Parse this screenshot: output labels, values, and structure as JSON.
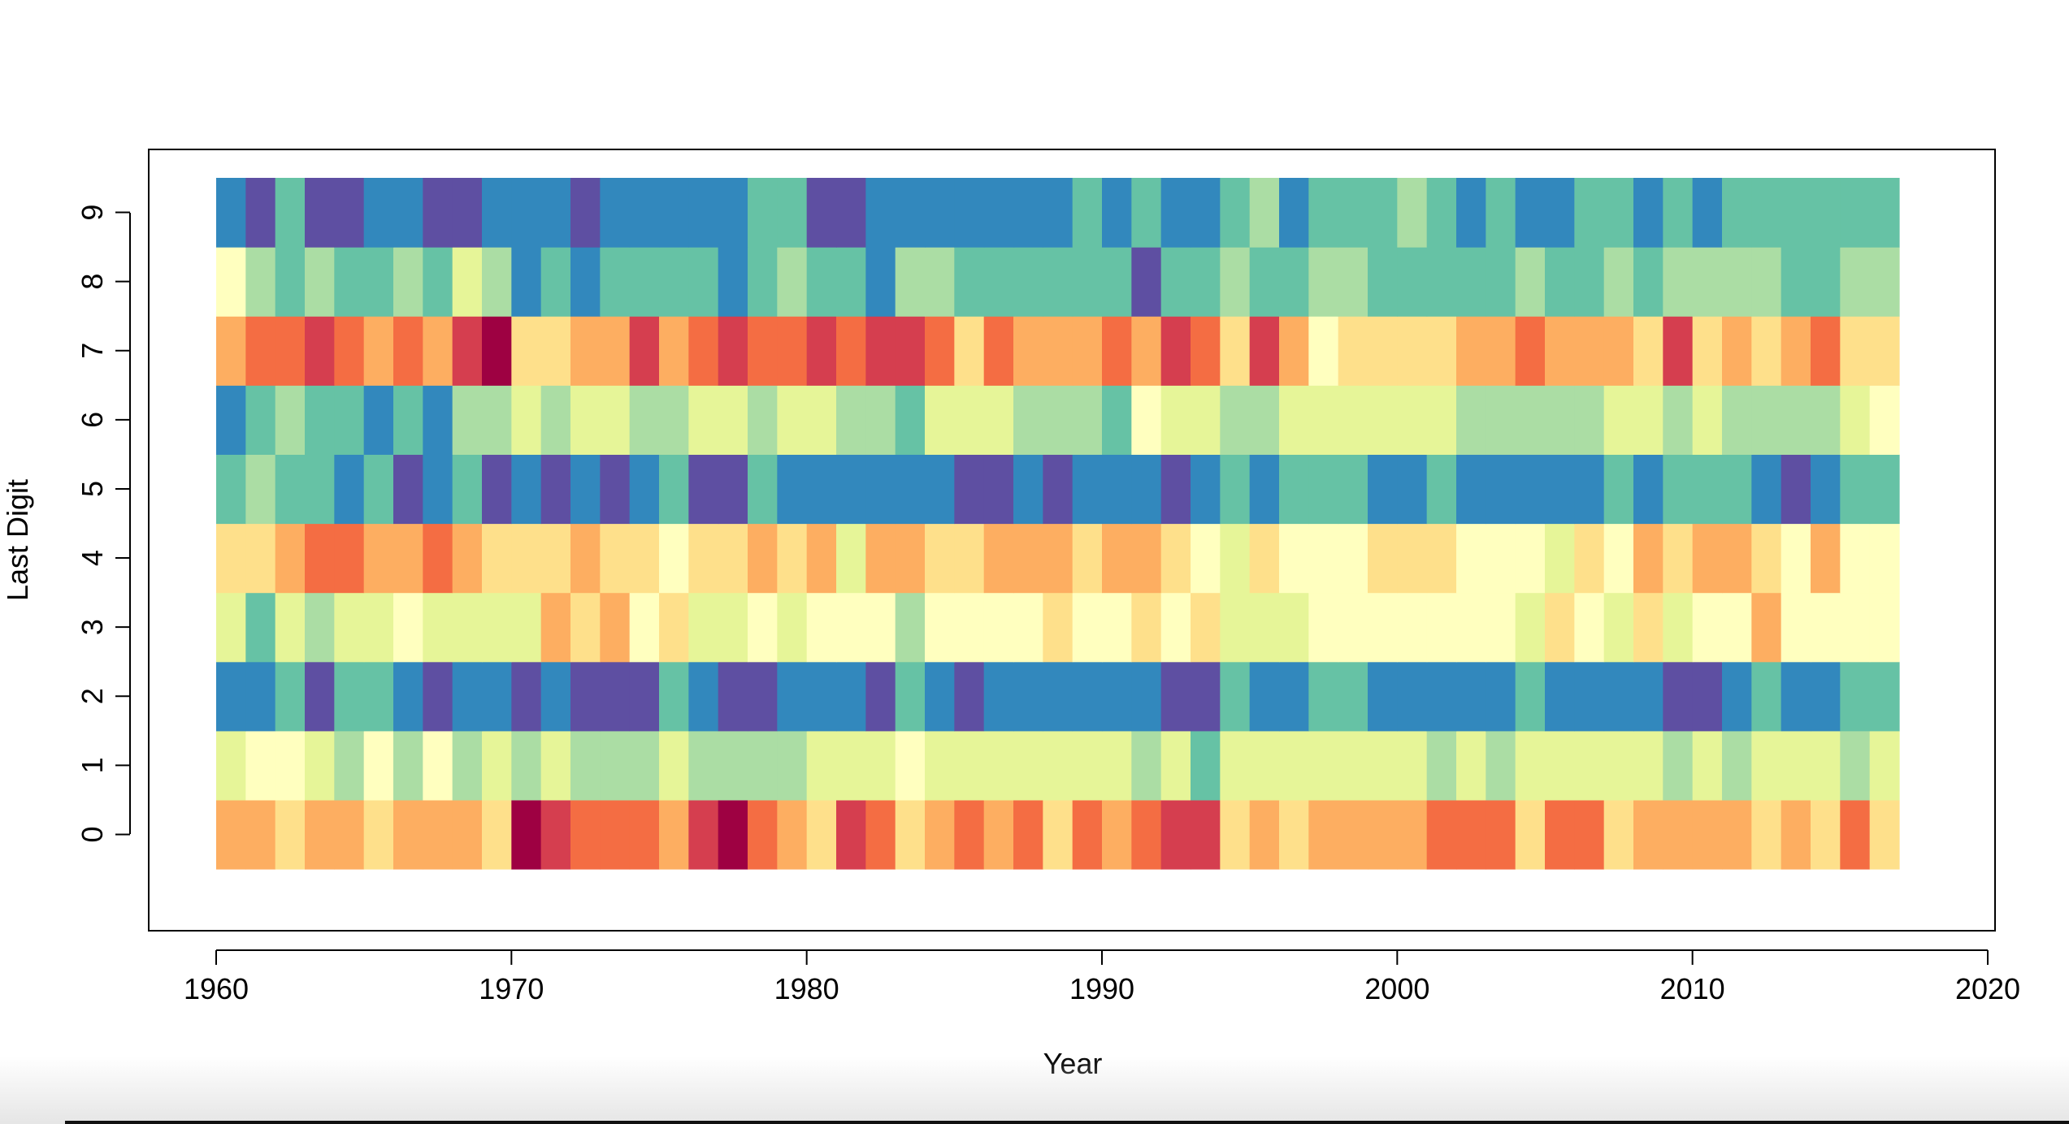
{
  "chart_data": {
    "type": "heatmap",
    "xlabel": "Year",
    "ylabel": "Last Digit",
    "x_ticks": [
      1960,
      1970,
      1980,
      1990,
      2000,
      2010,
      2020
    ],
    "y_ticks": [
      0,
      1,
      2,
      3,
      4,
      5,
      6,
      7,
      8,
      9
    ],
    "xlim": [
      1960,
      2020
    ],
    "years": [
      1960,
      2016
    ],
    "color_scale": "spectral, 1 = dark red (highest), 11 = violet (lowest)",
    "palette": [
      "#9E0142",
      "#D53E4F",
      "#F46D43",
      "#FDAE61",
      "#FEE08B",
      "#FFFFBF",
      "#E6F598",
      "#ABDDA4",
      "#66C2A5",
      "#3288BD",
      "#5E4FA2"
    ],
    "rows": {
      "0": [
        4,
        4,
        5,
        4,
        4,
        5,
        4,
        4,
        4,
        5,
        1,
        2,
        3,
        3,
        3,
        4,
        2,
        1,
        3,
        4,
        5,
        2,
        3,
        5,
        4,
        3,
        4,
        3,
        5,
        3,
        4,
        3,
        2,
        2,
        5,
        4,
        5,
        4,
        4,
        4,
        4,
        3,
        3,
        3,
        5,
        3,
        3,
        5,
        4,
        4,
        4,
        4,
        5,
        4,
        5,
        3,
        5
      ],
      "1": [
        7,
        6,
        6,
        7,
        8,
        6,
        8,
        6,
        8,
        7,
        8,
        7,
        8,
        8,
        8,
        7,
        8,
        8,
        8,
        8,
        7,
        7,
        7,
        6,
        7,
        7,
        7,
        7,
        7,
        7,
        7,
        8,
        7,
        9,
        7,
        7,
        7,
        7,
        7,
        7,
        7,
        8,
        7,
        8,
        7,
        7,
        7,
        7,
        7,
        8,
        7,
        8,
        7,
        7,
        7,
        8,
        7
      ],
      "2": [
        10,
        10,
        9,
        11,
        9,
        9,
        10,
        11,
        10,
        10,
        11,
        10,
        11,
        11,
        11,
        9,
        10,
        11,
        11,
        10,
        10,
        10,
        11,
        9,
        10,
        11,
        10,
        10,
        10,
        10,
        10,
        10,
        11,
        11,
        9,
        10,
        10,
        9,
        9,
        10,
        10,
        10,
        10,
        10,
        9,
        10,
        10,
        10,
        10,
        11,
        11,
        10,
        9,
        10,
        10,
        9,
        9
      ],
      "3": [
        7,
        9,
        7,
        8,
        7,
        7,
        6,
        7,
        7,
        7,
        7,
        4,
        5,
        4,
        6,
        5,
        7,
        7,
        6,
        7,
        6,
        6,
        6,
        8,
        6,
        6,
        6,
        6,
        5,
        6,
        6,
        5,
        6,
        5,
        7,
        7,
        7,
        6,
        6,
        6,
        6,
        6,
        6,
        6,
        7,
        5,
        6,
        7,
        5,
        7,
        6,
        6,
        4,
        6,
        6,
        6,
        6
      ],
      "4": [
        5,
        5,
        4,
        3,
        3,
        4,
        4,
        3,
        4,
        5,
        5,
        5,
        4,
        5,
        5,
        6,
        5,
        5,
        4,
        5,
        4,
        7,
        4,
        4,
        5,
        5,
        4,
        4,
        4,
        5,
        4,
        4,
        5,
        6,
        7,
        5,
        6,
        6,
        6,
        5,
        5,
        5,
        6,
        6,
        6,
        7,
        5,
        6,
        4,
        5,
        4,
        4,
        5,
        6,
        4,
        6,
        6
      ],
      "5": [
        9,
        8,
        9,
        9,
        10,
        9,
        11,
        10,
        9,
        11,
        10,
        11,
        10,
        11,
        10,
        9,
        11,
        11,
        9,
        10,
        10,
        10,
        10,
        10,
        10,
        11,
        11,
        10,
        11,
        10,
        10,
        10,
        11,
        10,
        9,
        10,
        9,
        9,
        9,
        10,
        10,
        9,
        10,
        10,
        10,
        10,
        10,
        9,
        10,
        9,
        9,
        9,
        10,
        11,
        10,
        9,
        9
      ],
      "6": [
        10,
        9,
        8,
        9,
        9,
        10,
        9,
        10,
        8,
        8,
        7,
        8,
        7,
        7,
        8,
        8,
        7,
        7,
        8,
        7,
        7,
        8,
        8,
        9,
        7,
        7,
        7,
        8,
        8,
        8,
        9,
        6,
        7,
        7,
        8,
        8,
        7,
        7,
        7,
        7,
        7,
        7,
        8,
        8,
        8,
        8,
        8,
        7,
        7,
        8,
        7,
        8,
        8,
        8,
        8,
        7,
        6
      ],
      "7": [
        4,
        3,
        3,
        2,
        3,
        4,
        3,
        4,
        2,
        1,
        5,
        5,
        4,
        4,
        2,
        4,
        3,
        2,
        3,
        3,
        2,
        3,
        2,
        2,
        3,
        5,
        3,
        4,
        4,
        4,
        3,
        4,
        2,
        3,
        5,
        2,
        4,
        6,
        5,
        5,
        5,
        5,
        4,
        4,
        3,
        4,
        4,
        4,
        5,
        2,
        5,
        4,
        5,
        4,
        3,
        5,
        5
      ],
      "8": [
        6,
        8,
        9,
        8,
        9,
        9,
        8,
        9,
        7,
        8,
        10,
        9,
        10,
        9,
        9,
        9,
        9,
        10,
        9,
        8,
        9,
        9,
        10,
        8,
        8,
        9,
        9,
        9,
        9,
        9,
        9,
        11,
        9,
        9,
        8,
        9,
        9,
        8,
        8,
        9,
        9,
        9,
        9,
        9,
        8,
        9,
        9,
        8,
        9,
        8,
        8,
        8,
        8,
        9,
        9,
        8,
        8
      ],
      "9": [
        10,
        11,
        9,
        11,
        11,
        10,
        10,
        11,
        11,
        10,
        10,
        10,
        11,
        10,
        10,
        10,
        10,
        10,
        9,
        9,
        11,
        11,
        10,
        10,
        10,
        10,
        10,
        10,
        10,
        9,
        10,
        9,
        10,
        10,
        9,
        8,
        10,
        9,
        9,
        9,
        8,
        9,
        10,
        9,
        10,
        10,
        9,
        9,
        10,
        9,
        10,
        9,
        9,
        9,
        9,
        9,
        9
      ]
    }
  }
}
